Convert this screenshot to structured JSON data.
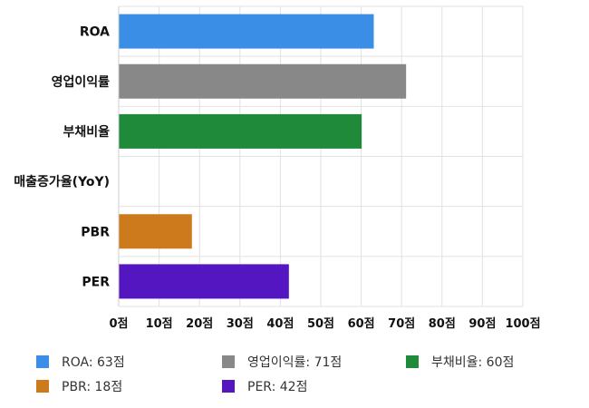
{
  "chart_data": {
    "type": "bar",
    "orientation": "horizontal",
    "categories": [
      "ROA",
      "영업이익률",
      "부채비율",
      "매출증가율(YoY)",
      "PBR",
      "PER"
    ],
    "values": [
      63,
      71,
      60,
      0,
      18,
      42
    ],
    "colors": [
      "#3a8ee6",
      "#888888",
      "#1e8a3a",
      "#ffffff",
      "#cc7a1b",
      "#5316c0"
    ],
    "x_ticks": [
      "0점",
      "10점",
      "20점",
      "30점",
      "40점",
      "50점",
      "60점",
      "70점",
      "80점",
      "90점",
      "100점"
    ],
    "xlim": [
      0,
      100
    ],
    "grid": true,
    "legend_position": "bottom",
    "legend": [
      {
        "label": "ROA: 63점",
        "color": "#3a8ee6"
      },
      {
        "label": "영업이익률: 71점",
        "color": "#888888"
      },
      {
        "label": "부채비율: 60점",
        "color": "#1e8a3a"
      },
      {
        "label": "PBR: 18점",
        "color": "#cc7a1b"
      },
      {
        "label": "PER: 42점",
        "color": "#5316c0"
      }
    ]
  }
}
